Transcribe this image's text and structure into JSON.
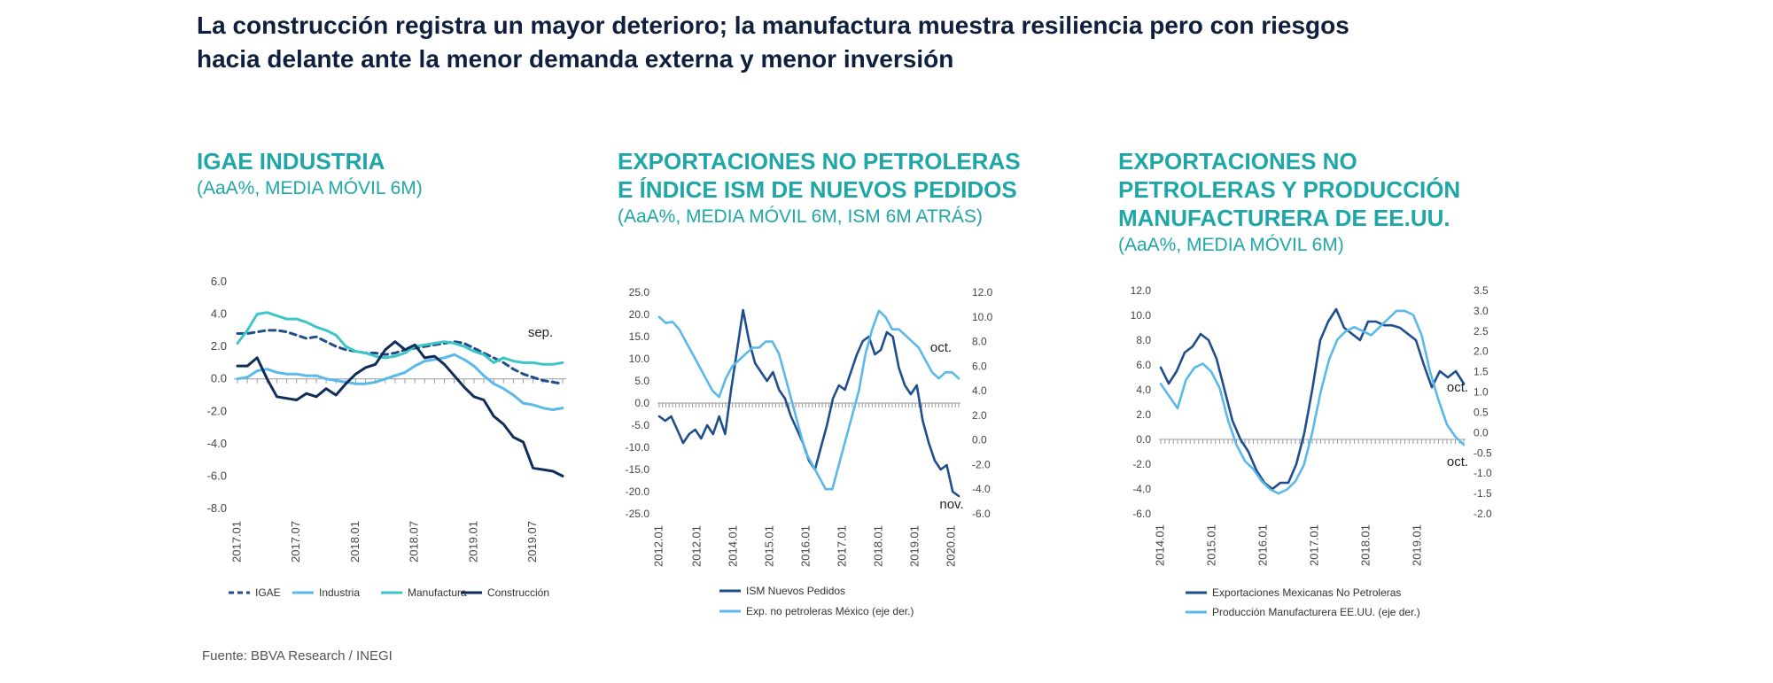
{
  "page": {
    "title_line1": "La construcción registra un mayor deterioro; la manufactura muestra resiliencia pero con riesgos",
    "title_line2": "hacia delante ante la menor demanda externa y menor inversión",
    "source": "Fuente: BBVA Research / INEGI"
  },
  "colors": {
    "heading": "#1fa7a8",
    "title": "#0f1f3d",
    "dark_blue": "#1f4e8c",
    "light_blue": "#5bb8ea",
    "teal": "#3cc6c8",
    "navy": "#0f2d5b"
  },
  "chart_data": [
    {
      "type": "line",
      "title": "IGAE INDUSTRIA",
      "subtitle": "(AaA%, MEDIA MÓVIL 6M)",
      "x_ticks": [
        "2017.01",
        "2017.07",
        "2018.01",
        "2018.07",
        "2019.01",
        "2019.07"
      ],
      "n_points": 34,
      "ylim": [
        -8,
        6
      ],
      "y_ticks": [
        "6.0",
        "4.0",
        "2.0",
        "0.0",
        "-2.0",
        "-4.0",
        "-6.0",
        "-8.0"
      ],
      "annotation": "sep.",
      "legend_position": "bottom",
      "series": [
        {
          "name": "IGAE",
          "color": "#1f4e8c",
          "dash": true,
          "values": [
            2.8,
            2.8,
            2.9,
            3.0,
            3.0,
            2.9,
            2.7,
            2.5,
            2.6,
            2.3,
            2.0,
            1.8,
            1.7,
            1.6,
            1.6,
            1.5,
            1.6,
            1.8,
            1.9,
            2.0,
            2.1,
            2.2,
            2.3,
            2.2,
            1.9,
            1.6,
            1.3,
            1.0,
            0.6,
            0.3,
            0.1,
            -0.1,
            -0.2,
            -0.3
          ]
        },
        {
          "name": "Industria",
          "color": "#5bb8ea",
          "dash": false,
          "values": [
            0.0,
            0.1,
            0.5,
            0.6,
            0.4,
            0.3,
            0.3,
            0.2,
            0.2,
            0.0,
            -0.1,
            -0.2,
            -0.3,
            -0.3,
            -0.2,
            0.0,
            0.2,
            0.4,
            0.8,
            1.1,
            1.2,
            1.3,
            1.5,
            1.2,
            0.8,
            0.2,
            -0.3,
            -0.6,
            -1.0,
            -1.5,
            -1.6,
            -1.8,
            -1.9,
            -1.8
          ]
        },
        {
          "name": "Manufactura",
          "color": "#3cc6c8",
          "dash": false,
          "values": [
            2.2,
            3.0,
            4.0,
            4.1,
            3.9,
            3.7,
            3.7,
            3.5,
            3.2,
            3.0,
            2.7,
            2.0,
            1.7,
            1.6,
            1.4,
            1.3,
            1.4,
            1.6,
            2.0,
            2.1,
            2.2,
            2.3,
            2.2,
            2.0,
            1.7,
            1.5,
            1.0,
            1.3,
            1.1,
            1.0,
            1.0,
            0.9,
            0.9,
            1.0
          ]
        },
        {
          "name": "Construcción",
          "color": "#0f2d5b",
          "dash": false,
          "values": [
            0.8,
            0.8,
            1.3,
            0.0,
            -1.1,
            -1.2,
            -1.3,
            -0.9,
            -1.1,
            -0.6,
            -1.0,
            -0.3,
            0.3,
            0.7,
            0.9,
            1.8,
            2.3,
            1.8,
            2.1,
            1.3,
            1.4,
            0.9,
            0.2,
            -0.5,
            -1.1,
            -1.3,
            -2.3,
            -2.8,
            -3.6,
            -3.9,
            -5.5,
            -5.6,
            -5.7,
            -6.0
          ]
        }
      ]
    },
    {
      "type": "line",
      "title_line1": "EXPORTACIONES NO PETROLERAS",
      "title_line2": "E ÍNDICE ISM DE NUEVOS PEDIDOS",
      "subtitle": "(AaA%, MEDIA MÓVIL 6M, ISM 6M ATRÁS)",
      "x_ticks": [
        "2012.01",
        "2012.01",
        "2014.01",
        "2015.01",
        "2016.01",
        "2017.01",
        "2018.01",
        "2019.01",
        "2020.01"
      ],
      "ylim_left": [
        -25,
        25
      ],
      "ylim_right": [
        -6,
        12
      ],
      "y_ticks_left": [
        "25.0",
        "20.0",
        "15.0",
        "10.0",
        "5.0",
        "0.0",
        "-5.0",
        "-10.0",
        "-15.0",
        "-20.0",
        "-25.0"
      ],
      "y_ticks_right": [
        "12.0",
        "10.0",
        "8.0",
        "6.0",
        "4.0",
        "2.0",
        "0.0",
        "-2.0",
        "-4.0",
        "-6.0"
      ],
      "annotation_right": "oct.",
      "annotation_left": "nov.",
      "legend_position": "bottom",
      "series": [
        {
          "name": "ISM Nuevos Pedidos",
          "color": "#1f4e8c",
          "axis": "left",
          "values": [
            -3,
            -4,
            -3,
            -6,
            -9,
            -7,
            -6,
            -8,
            -5,
            -7,
            -3,
            -7,
            3,
            12,
            21,
            14,
            9,
            7,
            5,
            7,
            3,
            1,
            -3,
            -6,
            -9,
            -13,
            -15,
            -10,
            -5,
            1,
            4,
            3,
            7,
            11,
            14,
            15,
            11,
            12,
            16,
            15,
            8,
            4,
            2,
            4,
            -4,
            -9,
            -13,
            -15,
            -14,
            -20,
            -21
          ]
        },
        {
          "name": "Exp. no petroleras México (eje der.)",
          "color": "#5bb8ea",
          "axis": "right",
          "values": [
            10,
            9.5,
            9.6,
            9,
            8,
            7,
            6,
            5,
            4,
            3.5,
            5,
            6,
            6.5,
            7,
            7.5,
            7.5,
            8,
            8,
            7,
            5,
            3,
            1,
            -1,
            -2,
            -3,
            -4,
            -4,
            -2,
            0,
            2,
            4,
            7,
            9,
            10.5,
            10,
            9,
            9,
            8.5,
            8,
            7.5,
            6.5,
            5.5,
            5,
            5.5,
            5.5,
            5
          ]
        }
      ]
    },
    {
      "type": "line",
      "title_line1": "EXPORTACIONES NO",
      "title_line2": "PETROLERAS Y PRODUCCIÓN",
      "title_line3": "MANUFACTURERA DE EE.UU.",
      "subtitle": "(AaA%, MEDIA MÓVIL 6M)",
      "x_ticks": [
        "2014.01",
        "2015.01",
        "2016.01",
        "2017.01",
        "2018.01",
        "2019.01"
      ],
      "ylim_left": [
        -6,
        12
      ],
      "ylim_right": [
        -2,
        3.5
      ],
      "y_ticks_left": [
        "12.0",
        "10.0",
        "8.0",
        "6.0",
        "4.0",
        "2.0",
        "0.0",
        "-2.0",
        "-4.0",
        "-6.0"
      ],
      "y_ticks_right": [
        "3.5",
        "3.0",
        "2.5",
        "2.0",
        "1.5",
        "1.0",
        "0.5",
        "0.0",
        "-0.5",
        "-1.0",
        "-1.5",
        "-2.0"
      ],
      "annotation_upper": "oct.",
      "annotation_lower": "oct.",
      "legend_position": "bottom",
      "series": [
        {
          "name": "Exportaciones Mexicanas No Petroleras",
          "color": "#1f4e8c",
          "axis": "left",
          "values": [
            5.8,
            4.5,
            5.5,
            7,
            7.5,
            8.5,
            8,
            6.5,
            4,
            1.5,
            0,
            -1,
            -2.5,
            -3.5,
            -4,
            -3.5,
            -3.5,
            -2,
            0.5,
            4,
            8,
            9.5,
            10.5,
            9,
            8.5,
            8,
            9.5,
            9.5,
            9.2,
            9.2,
            9,
            8.5,
            8,
            6,
            4.2,
            5.5,
            5.0,
            5.5,
            4.5
          ]
        },
        {
          "name": "Producción Manufacturera EE.UU. (eje der.)",
          "color": "#5bb8ea",
          "axis": "right",
          "values": [
            1.2,
            0.9,
            0.6,
            1.3,
            1.6,
            1.7,
            1.5,
            1.1,
            0.3,
            -0.3,
            -0.7,
            -0.9,
            -1.2,
            -1.4,
            -1.5,
            -1.4,
            -1.2,
            -0.8,
            0.0,
            1.0,
            1.8,
            2.3,
            2.5,
            2.6,
            2.5,
            2.4,
            2.6,
            2.8,
            3.0,
            3.0,
            2.9,
            2.4,
            1.5,
            0.8,
            0.2,
            -0.1,
            -0.3
          ]
        }
      ]
    }
  ],
  "charts": {
    "c1": {
      "title": "IGAE INDUSTRIA",
      "subtitle": "(AaA%, MEDIA MÓVIL 6M)"
    },
    "c2": {
      "title_line1": "EXPORTACIONES NO PETROLERAS",
      "title_line2": "E ÍNDICE ISM DE NUEVOS PEDIDOS",
      "subtitle": "(AaA%, MEDIA MÓVIL 6M, ISM 6M ATRÁS)"
    },
    "c3": {
      "title_line1": "EXPORTACIONES NO",
      "title_line2": "PETROLERAS Y PRODUCCIÓN",
      "title_line3": "MANUFACTURERA DE EE.UU.",
      "subtitle": "(AaA%, MEDIA MÓVIL 6M)"
    }
  }
}
